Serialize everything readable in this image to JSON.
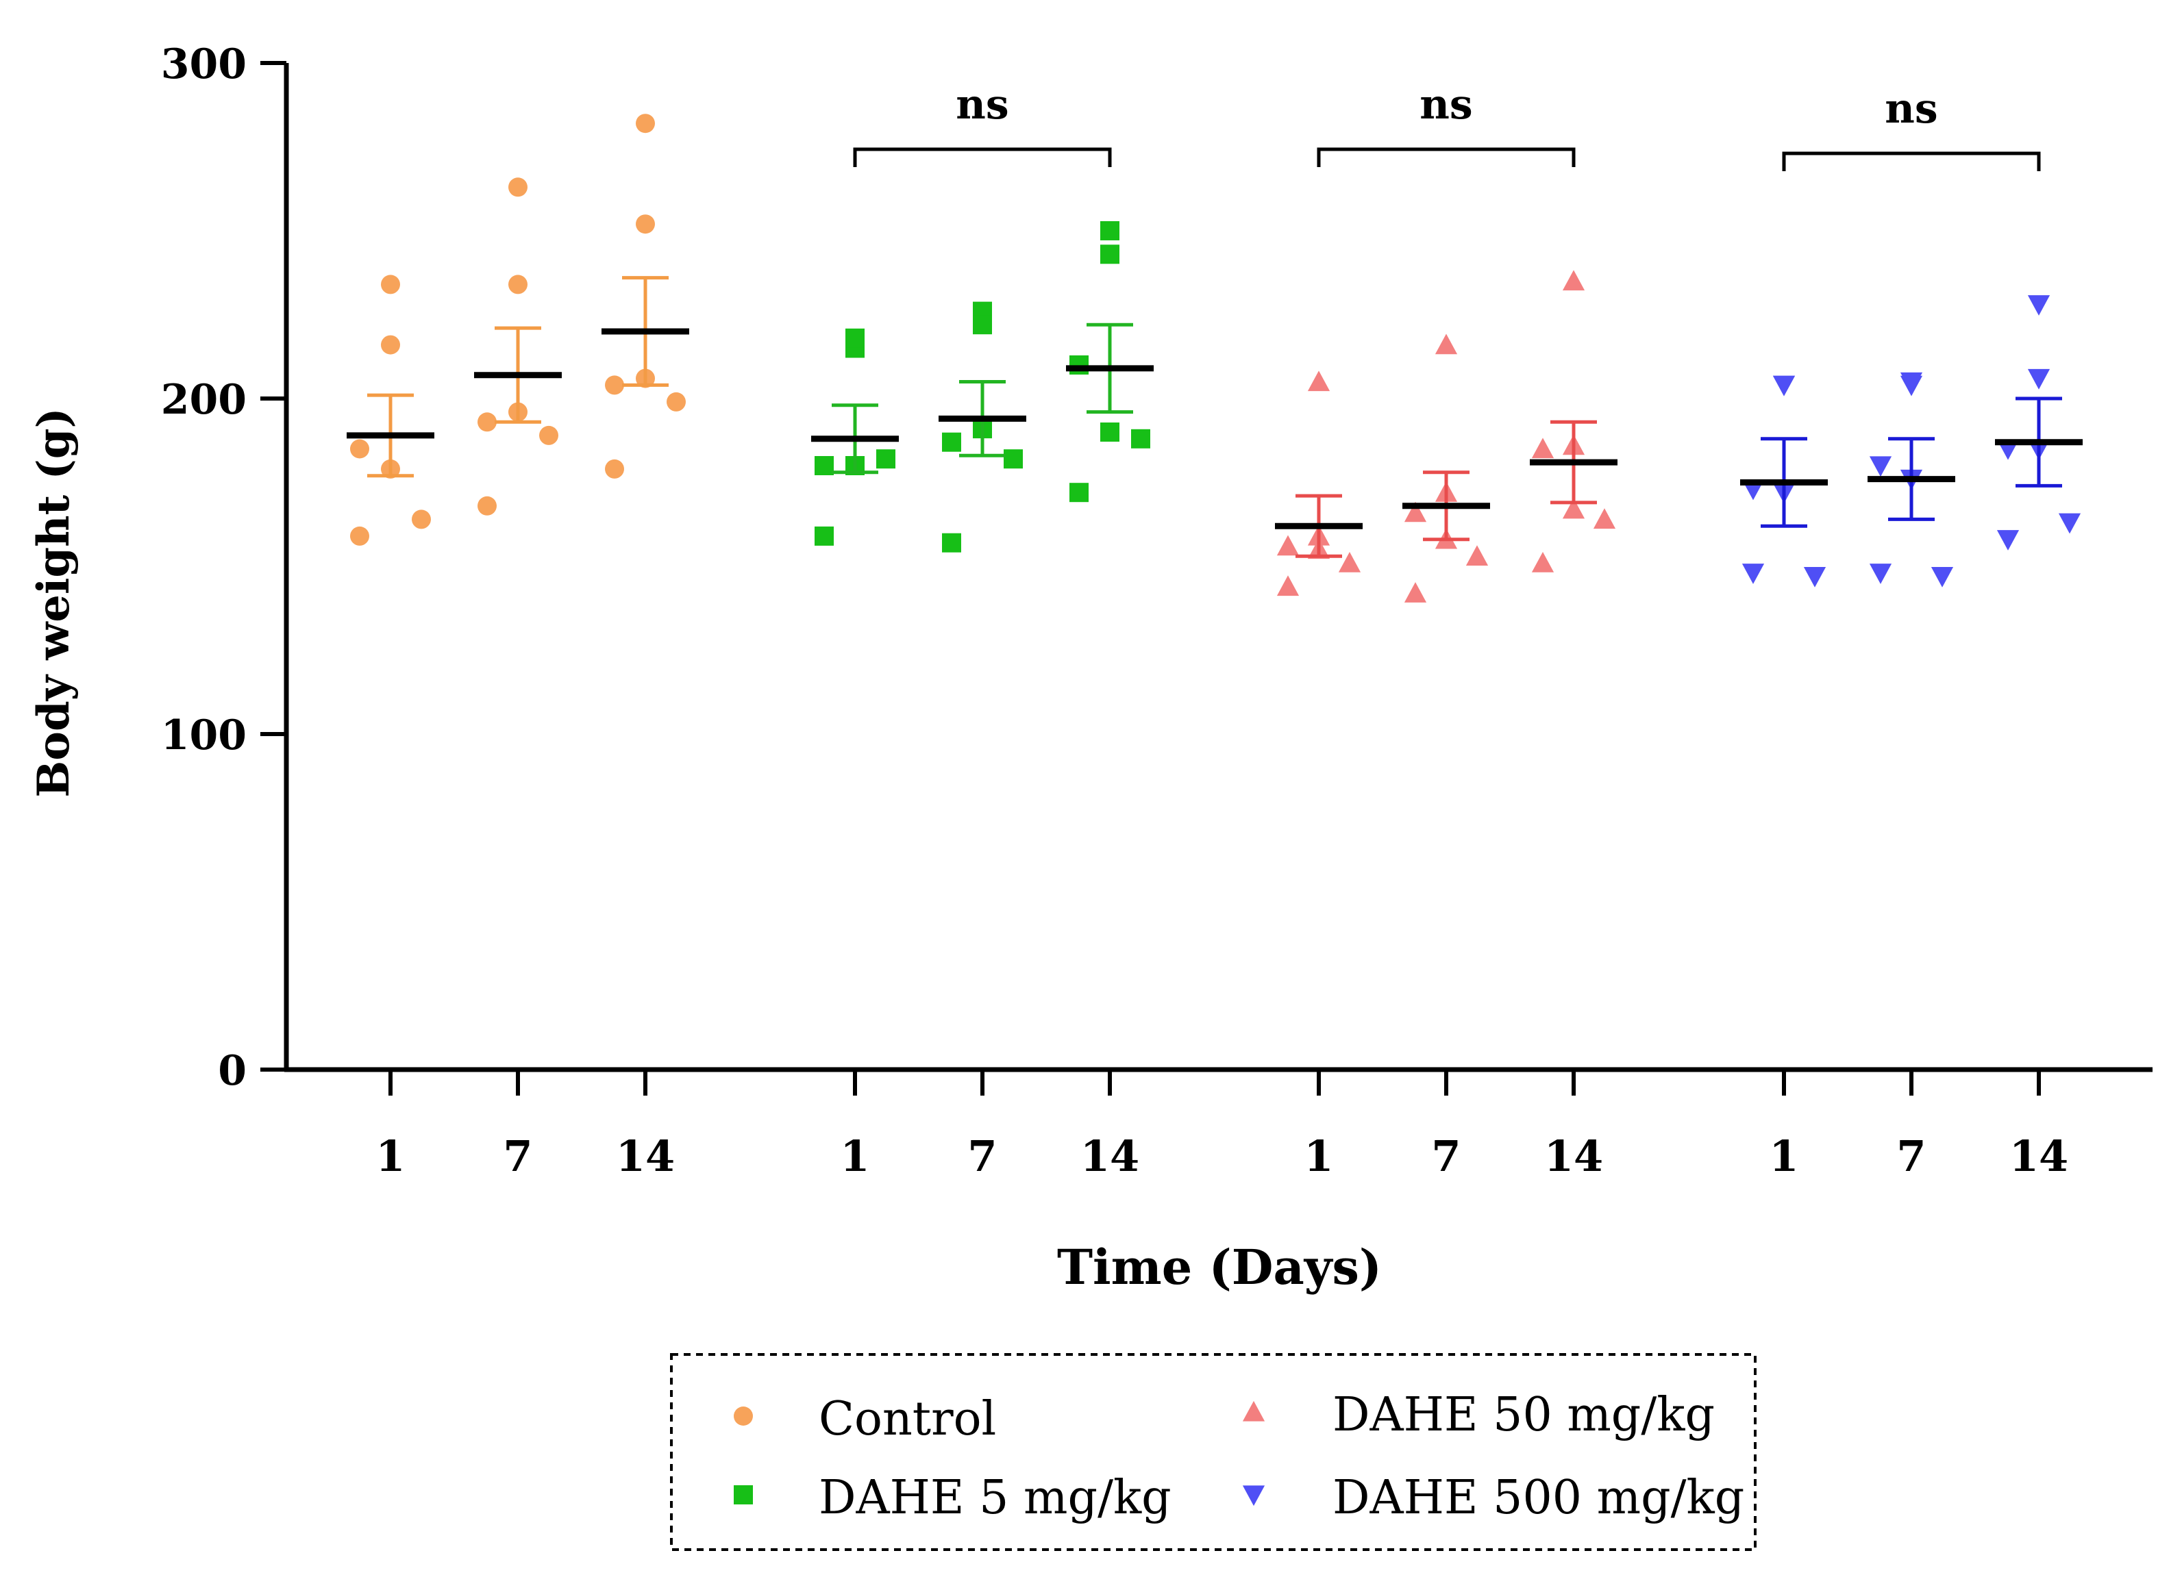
{
  "chart_data": {
    "type": "scatter",
    "ylabel": "Body weight (g)",
    "xlabel": "Time (Days)",
    "ylim": [
      0,
      300
    ],
    "yticks": [
      "0",
      "100",
      "200",
      "300"
    ],
    "days": [
      "1",
      "7",
      "14"
    ],
    "significance_label": "ns",
    "series": [
      {
        "name": "Control",
        "marker": "circle",
        "color": "#F7A35A",
        "error_color": "#F39B45",
        "groups": [
          {
            "day": "1",
            "mean": 189,
            "sem": 12,
            "points": [
              234,
              216,
              185,
              179,
              164,
              159
            ]
          },
          {
            "day": "7",
            "mean": 207,
            "sem": 14,
            "points": [
              263,
              234,
              193,
              196,
              189,
              168
            ]
          },
          {
            "day": "14",
            "mean": 220,
            "sem": 16,
            "points": [
              282,
              252,
              204,
              206,
              199,
              179
            ]
          }
        ]
      },
      {
        "name": "DAHE 5 mg/kg",
        "marker": "square",
        "color": "#17BF17",
        "error_color": "#22B522",
        "groups": [
          {
            "day": "1",
            "mean": 188,
            "sem": 10,
            "points": [
              215,
              218,
              180,
              180,
              182,
              159
            ]
          },
          {
            "day": "7",
            "mean": 194,
            "sem": 11,
            "points": [
              226,
              222,
              187,
              191,
              182,
              157
            ]
          },
          {
            "day": "14",
            "mean": 209,
            "sem": 13,
            "points": [
              250,
              243,
              210,
              190,
              188,
              172
            ]
          }
        ]
      },
      {
        "name": "DAHE 50 mg/kg",
        "marker": "triangle-up",
        "color": "#F37F7F",
        "error_color": "#E84C4C",
        "groups": [
          {
            "day": "1",
            "mean": 162,
            "sem": 9,
            "points": [
              205,
              159,
              156,
              155,
              151,
              144
            ]
          },
          {
            "day": "7",
            "mean": 168,
            "sem": 10,
            "points": [
              216,
              172,
              166,
              158,
              153,
              142
            ]
          },
          {
            "day": "14",
            "mean": 181,
            "sem": 12,
            "points": [
              235,
              186,
              185,
              167,
              164,
              151
            ]
          }
        ]
      },
      {
        "name": "DAHE 500 mg/kg",
        "marker": "triangle-down",
        "color": "#4F4FF5",
        "error_color": "#1A1AD6",
        "groups": [
          {
            "day": "1",
            "mean": 175,
            "sem": 13,
            "points": [
              204,
              204,
              173,
              172,
              147,
              148
            ]
          },
          {
            "day": "7",
            "mean": 176,
            "sem": 12,
            "points": [
              204,
              205,
              180,
              176,
              147,
              148
            ]
          },
          {
            "day": "14",
            "mean": 187,
            "sem": 13,
            "points": [
              228,
              206,
              185,
              185,
              163,
              158
            ]
          }
        ]
      }
    ]
  }
}
